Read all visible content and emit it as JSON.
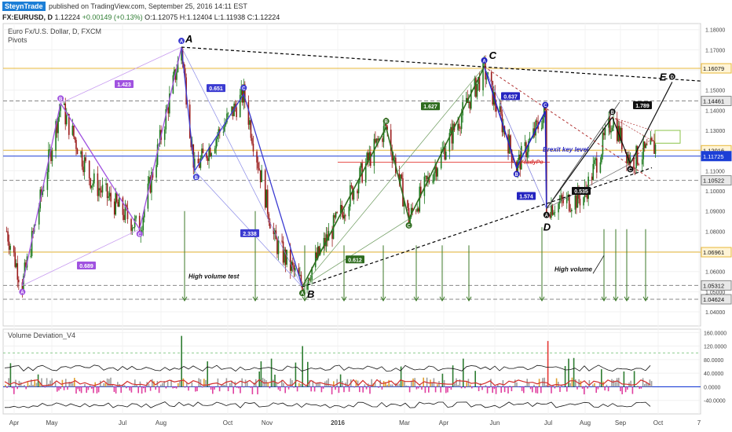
{
  "header": {
    "author": "SteynTrade",
    "published": "published on TradingView.com, September 25, 2016 14:11 EST",
    "symbol": "FX:EURUSD, D",
    "last": "1.12224",
    "change": "+0.00149 (+0.13%)",
    "open": "O:1.12075",
    "high": "H:1.12404",
    "low": "L:1.11938",
    "close": "C:1.12224"
  },
  "chart_data": [
    {
      "type": "candlestick",
      "title": "Euro Fx/U.S. Dollar, D, FXCM",
      "indicator": "Pivots",
      "x_ticks": [
        "Apr",
        "May",
        "Jul",
        "Aug",
        "Oct",
        "Nov",
        "2016",
        "Mar",
        "Apr",
        "Jun",
        "Jul",
        "Aug",
        "Sep",
        "Oct",
        "7"
      ],
      "y_ticks": [
        "1.18000",
        "1.17000",
        "1.16000",
        "1.15000",
        "1.14000",
        "1.13000",
        "1.12000",
        "1.11000",
        "1.10000",
        "1.09000",
        "1.08000",
        "1.07000",
        "1.06000",
        "1.05000",
        "1.04000"
      ],
      "ylim": [
        1.033,
        1.183
      ],
      "price_levels": [
        {
          "label": "1.16079",
          "value": 1.16079,
          "color": "#e8b83a"
        },
        {
          "label": "1.14461",
          "value": 1.14461,
          "color": "#888888"
        },
        {
          "label": "1.12016",
          "value": 1.12016,
          "color": "#e8b83a"
        },
        {
          "label": "1.11725",
          "value": 1.11725,
          "color": "#1c3fd6"
        },
        {
          "label": "1.10522",
          "value": 1.10522,
          "color": "#888888"
        },
        {
          "label": "1.06961",
          "value": 1.06961,
          "color": "#e8b83a"
        },
        {
          "label": "1.05312",
          "value": 1.05312,
          "color": "#888888"
        },
        {
          "label": "1.04624",
          "value": 1.04624,
          "color": "#888888"
        }
      ],
      "pattern_points": [
        {
          "label": "A",
          "date": "2015-08-24",
          "price": 1.1713
        },
        {
          "label": "B",
          "date": "2015-12-03",
          "price": 1.0524
        },
        {
          "label": "C",
          "date": "2016-05-03",
          "price": 1.1616
        },
        {
          "label": "D",
          "date": "2016-06-24",
          "price": 1.0912
        },
        {
          "label": "E",
          "date": "2016-10-07",
          "price": 1.154
        }
      ],
      "fib_ratios": [
        "1.423",
        "0.651",
        "0.689",
        "2.338",
        "0.612",
        "1.627",
        "0.637",
        "1.574",
        "0.535",
        "1.789"
      ],
      "annotations": [
        "High volume test",
        "High volume",
        "Brexit key level",
        "YoadyPo"
      ]
    },
    {
      "type": "histogram",
      "title": "Volume Deviation_V4",
      "y_ticks": [
        "160.0000",
        "120.0000",
        "80.0000",
        "40.0000",
        "0.0000",
        "-40.0000"
      ],
      "ylim": [
        -80,
        170
      ],
      "spike_dates": [
        "2015-08-24",
        "2015-12-03",
        "2016-06-24"
      ],
      "spike_values": [
        150,
        120,
        135
      ]
    }
  ]
}
